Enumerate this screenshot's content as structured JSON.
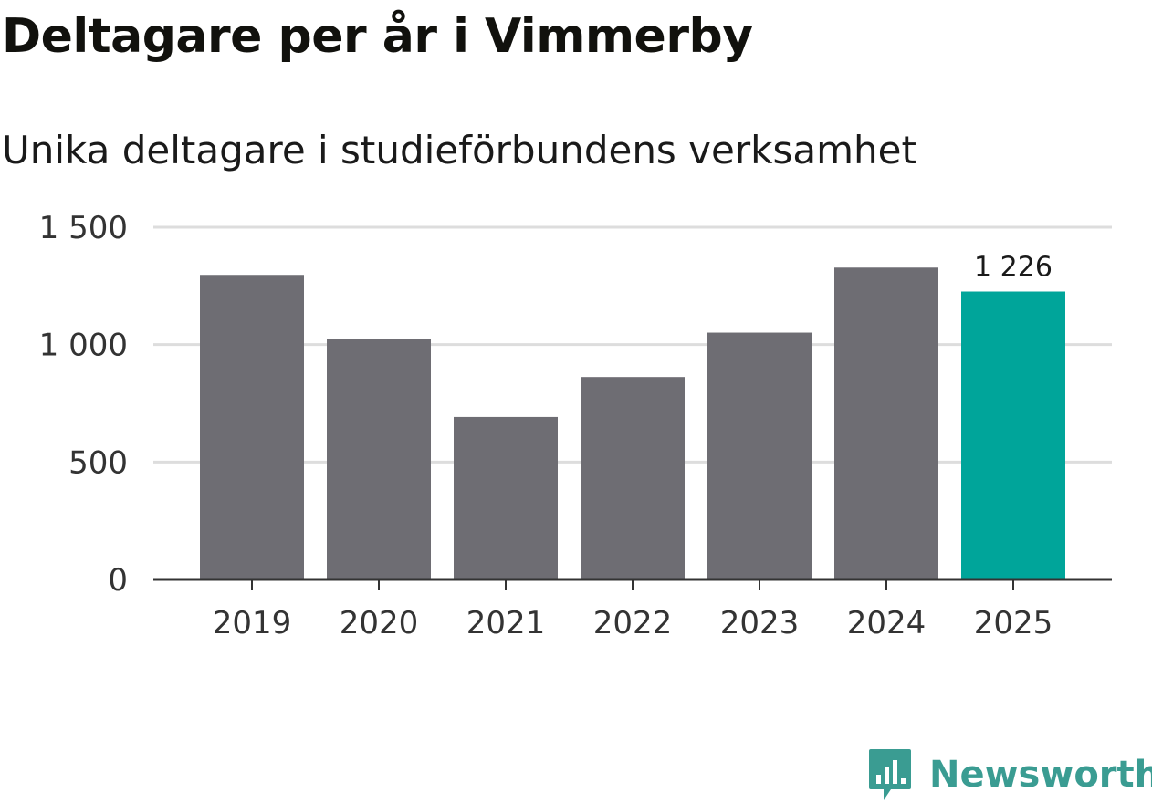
{
  "chart_data": {
    "type": "bar",
    "title": "Deltagare per år i Vimmerby",
    "subtitle": "Unika deltagare i studieförbundens verksamhet",
    "categories": [
      "2019",
      "2020",
      "2021",
      "2022",
      "2023",
      "2024",
      "2025"
    ],
    "values": [
      1297,
      1024,
      692,
      862,
      1051,
      1328,
      1226
    ],
    "y_ticks": [
      0,
      500,
      1000,
      1500
    ],
    "y_tick_labels": [
      "0",
      "500",
      "1 000",
      "1 500"
    ],
    "ylim": [
      0,
      1500
    ],
    "grid": true,
    "highlight_index": 6,
    "data_labels": [
      {
        "index": 6,
        "text": "1 226"
      }
    ],
    "xlabel": "",
    "ylabel": "",
    "colors": {
      "bar": "#6e6d73",
      "highlight": "#00a59a",
      "grid": "#dddddd",
      "axis": "#333333"
    }
  },
  "brand": {
    "name": "Newsworthy",
    "logo_icon": "bar-chart-bubble-icon",
    "color": "#3a9c92"
  }
}
